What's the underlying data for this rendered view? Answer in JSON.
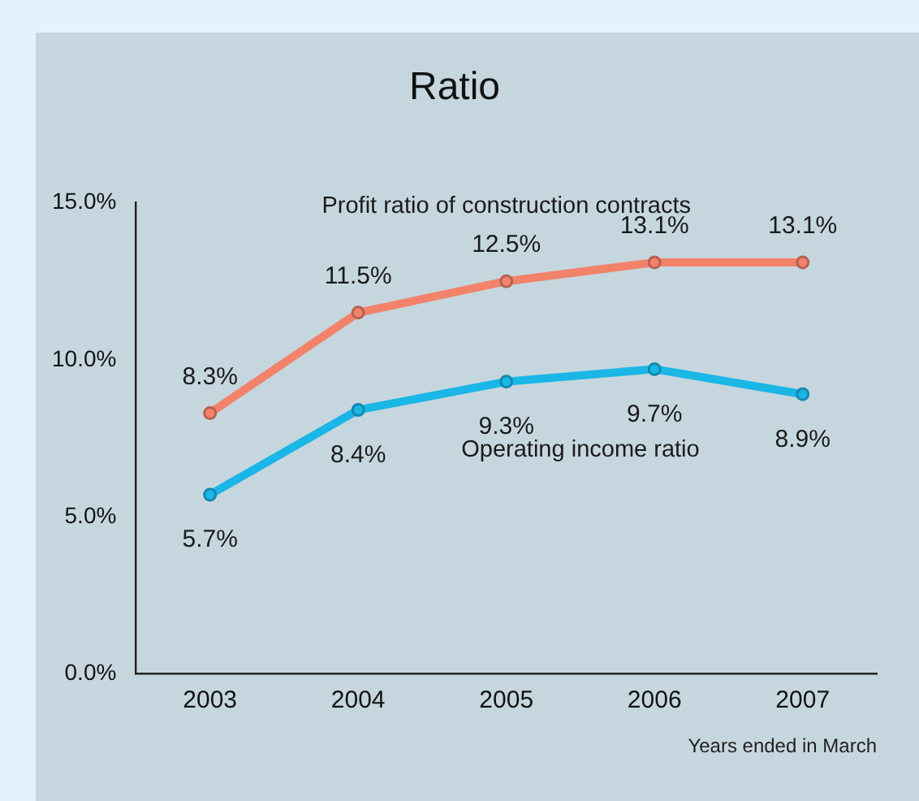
{
  "chart_data": {
    "type": "line",
    "title": "Ratio",
    "xlabel": "Years ended in March",
    "categories": [
      "2003",
      "2004",
      "2005",
      "2006",
      "2007"
    ],
    "series": [
      {
        "name": "Profit ratio of construction contracts",
        "color": "#f2826a",
        "values": [
          8.3,
          11.5,
          12.5,
          13.1,
          13.1
        ],
        "value_labels": [
          "8.3%",
          "11.5%",
          "12.5%",
          "13.1%",
          "13.1%"
        ]
      },
      {
        "name": "Operating income ratio",
        "color": "#19b6e6",
        "values": [
          5.7,
          8.4,
          9.3,
          9.7,
          8.9
        ],
        "value_labels": [
          "5.7%",
          "8.4%",
          "9.3%",
          "9.7%",
          "8.9%"
        ]
      }
    ],
    "ylim": [
      0,
      15
    ],
    "yticks": [
      {
        "value": 0,
        "label": "0.0%"
      },
      {
        "value": 5,
        "label": "5.0%"
      },
      {
        "value": 10,
        "label": "10.0%"
      },
      {
        "value": 15,
        "label": "15.0%"
      }
    ],
    "grid": false,
    "legend": false,
    "marker": "circle",
    "line_style": "solid"
  }
}
